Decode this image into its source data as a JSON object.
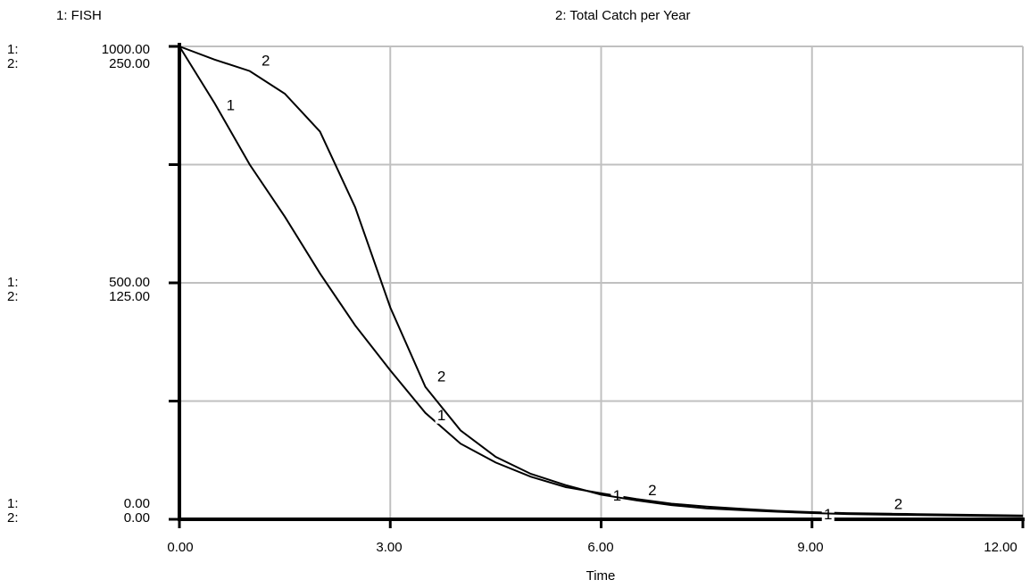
{
  "chart_data": {
    "type": "line",
    "xlabel": "Time",
    "xlim": [
      0,
      12
    ],
    "x_ticks": [
      "0.00",
      "3.00",
      "6.00",
      "9.00",
      "12.00"
    ],
    "series": [
      {
        "name": "1: FISH",
        "marker": "1",
        "ylim": [
          0,
          1000
        ],
        "axis_ticks": {
          "top": "1000.00",
          "mid": "500.00",
          "bottom": "0.00"
        },
        "x": [
          0,
          0.5,
          1,
          1.5,
          2,
          2.5,
          3,
          3.5,
          4,
          4.5,
          5,
          5.5,
          6,
          6.5,
          7,
          7.5,
          8,
          8.5,
          9,
          9.5,
          10,
          10.5,
          11,
          11.5,
          12
        ],
        "y": [
          1000,
          880,
          750,
          640,
          520,
          410,
          315,
          225,
          160,
          120,
          90,
          68,
          55,
          43,
          33,
          27,
          22,
          18,
          15,
          13,
          12,
          11,
          10,
          9,
          8
        ]
      },
      {
        "name": "2: Total Catch per Year",
        "marker": "2",
        "ylim": [
          0,
          250
        ],
        "axis_ticks": {
          "top": "250.00",
          "mid": "125.00",
          "bottom": "0.00"
        },
        "x": [
          0,
          0.5,
          1,
          1.5,
          2,
          2.5,
          3,
          3.5,
          4,
          4.5,
          5,
          5.5,
          6,
          6.5,
          7,
          7.5,
          8,
          8.5,
          9,
          9.5,
          10,
          10.5,
          11,
          11.5,
          12
        ],
        "y": [
          250,
          243,
          237,
          225,
          205,
          165,
          112,
          70,
          47,
          33,
          24,
          18,
          13,
          10,
          7.5,
          5.8,
          4.8,
          4,
          3.3,
          2.8,
          2.5,
          2.2,
          2,
          1.8,
          1.6
        ]
      }
    ],
    "axis_prefix": {
      "series1": "1:",
      "series2": "2:"
    },
    "grid": true,
    "y_gridlines": 4,
    "x_gridlines": 4
  }
}
